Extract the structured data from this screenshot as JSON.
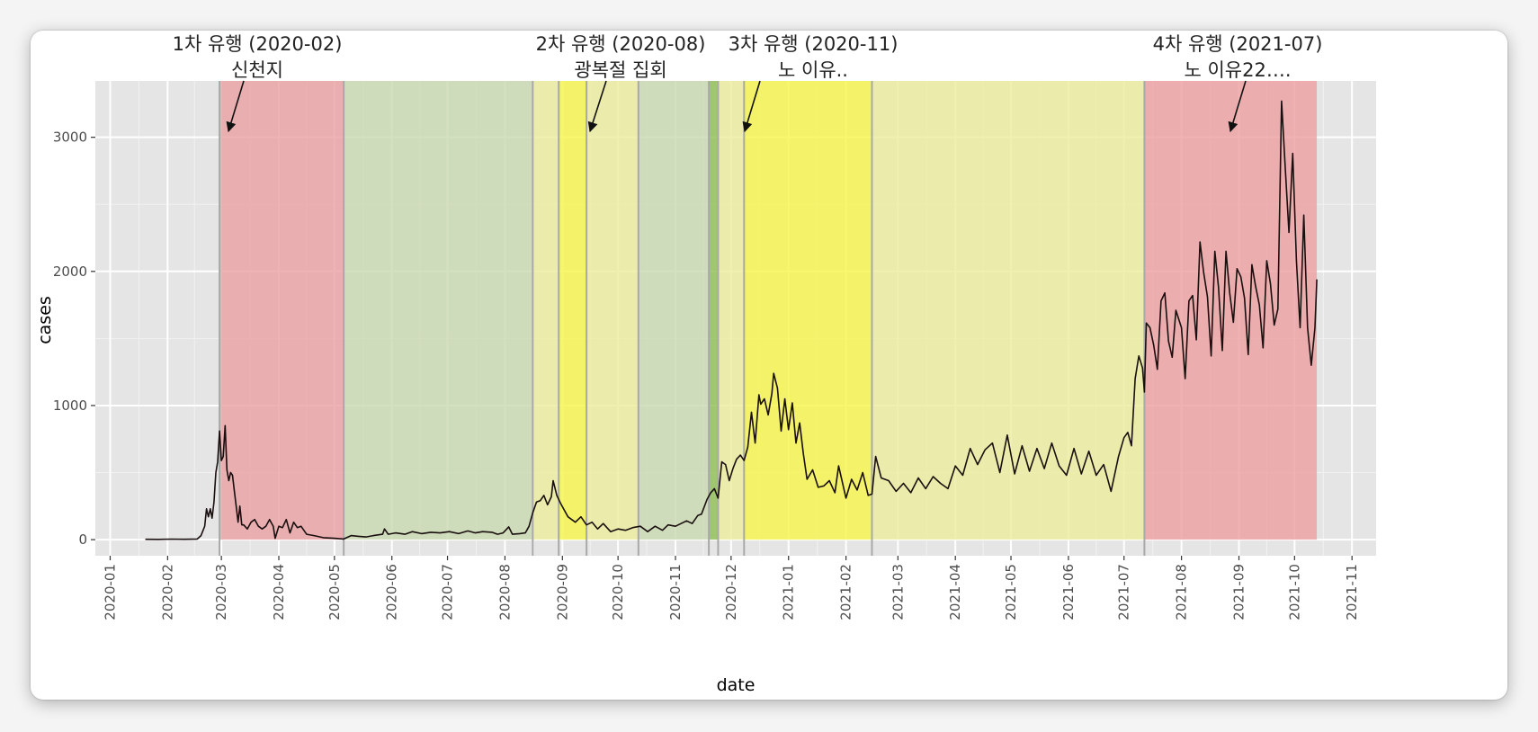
{
  "chart_data": {
    "type": "line",
    "xlabel": "date",
    "ylabel": "cases",
    "xlim": [
      "2020-01-01",
      "2021-11-01"
    ],
    "ylim": [
      0,
      3300
    ],
    "x_ticks": [
      "2020-01",
      "2020-02",
      "2020-03",
      "2020-04",
      "2020-05",
      "2020-06",
      "2020-07",
      "2020-08",
      "2020-09",
      "2020-10",
      "2020-11",
      "2020-12",
      "2021-01",
      "2021-02",
      "2021-03",
      "2021-04",
      "2021-05",
      "2021-06",
      "2021-07",
      "2021-08",
      "2021-09",
      "2021-10",
      "2021-11"
    ],
    "y_ticks": [
      0,
      1000,
      2000,
      3000
    ],
    "grid": true,
    "shaded_periods": [
      {
        "start": "2020-02-29",
        "end": "2020-05-06",
        "color": "#e8a0a3"
      },
      {
        "start": "2020-05-06",
        "end": "2020-08-16",
        "color": "#c9d9b0"
      },
      {
        "start": "2020-08-16",
        "end": "2020-08-30",
        "color": "#ecec9c"
      },
      {
        "start": "2020-08-30",
        "end": "2020-09-14",
        "color": "#f6f54a"
      },
      {
        "start": "2020-09-14",
        "end": "2020-10-12",
        "color": "#ecec9c"
      },
      {
        "start": "2020-10-12",
        "end": "2020-11-19",
        "color": "#c9d9b0"
      },
      {
        "start": "2020-11-19",
        "end": "2020-11-24",
        "color": "#8fbf4f"
      },
      {
        "start": "2020-11-24",
        "end": "2020-12-08",
        "color": "#ecec9c"
      },
      {
        "start": "2020-12-08",
        "end": "2021-02-15",
        "color": "#f6f54a"
      },
      {
        "start": "2021-02-15",
        "end": "2021-07-12",
        "color": "#ecec9c"
      },
      {
        "start": "2021-07-12",
        "end": "2021-10-13",
        "color": "#ec9fa0"
      }
    ],
    "vlines": [
      "2020-02-29",
      "2020-05-06",
      "2020-08-16",
      "2020-08-30",
      "2020-09-14",
      "2020-10-12",
      "2020-11-19",
      "2020-11-24",
      "2020-12-08",
      "2021-02-15",
      "2021-07-12"
    ],
    "annotations": [
      {
        "text": [
          "1차 유행 (2020-02)",
          "신천지"
        ],
        "date": "2020-02-29"
      },
      {
        "text": [
          "2차 유행 (2020-08)",
          "광복절 집회"
        ],
        "date": "2020-08-16"
      },
      {
        "text": [
          "3차 유행 (2020-11)",
          "노 이유.."
        ],
        "date": "2020-11-01"
      },
      {
        "text": [
          "4차 유행 (2021-07)",
          "노 이유22…."
        ],
        "date": "2021-07-01"
      }
    ],
    "series": [
      {
        "points": [
          [
            "2020-01-20",
            3
          ],
          [
            "2020-01-27",
            2
          ],
          [
            "2020-02-03",
            4
          ],
          [
            "2020-02-10",
            3
          ],
          [
            "2020-02-17",
            5
          ],
          [
            "2020-02-19",
            30
          ],
          [
            "2020-02-21",
            100
          ],
          [
            "2020-02-22",
            230
          ],
          [
            "2020-02-23",
            170
          ],
          [
            "2020-02-24",
            230
          ],
          [
            "2020-02-25",
            160
          ],
          [
            "2020-02-26",
            280
          ],
          [
            "2020-02-27",
            500
          ],
          [
            "2020-02-28",
            580
          ],
          [
            "2020-02-29",
            810
          ],
          [
            "2020-03-01",
            590
          ],
          [
            "2020-03-02",
            620
          ],
          [
            "2020-03-03",
            850
          ],
          [
            "2020-03-04",
            520
          ],
          [
            "2020-03-05",
            440
          ],
          [
            "2020-03-06",
            500
          ],
          [
            "2020-03-07",
            480
          ],
          [
            "2020-03-08",
            360
          ],
          [
            "2020-03-09",
            250
          ],
          [
            "2020-03-10",
            130
          ],
          [
            "2020-03-11",
            250
          ],
          [
            "2020-03-12",
            110
          ],
          [
            "2020-03-13",
            110
          ],
          [
            "2020-03-15",
            80
          ],
          [
            "2020-03-17",
            130
          ],
          [
            "2020-03-19",
            150
          ],
          [
            "2020-03-21",
            100
          ],
          [
            "2020-03-23",
            80
          ],
          [
            "2020-03-25",
            100
          ],
          [
            "2020-03-27",
            150
          ],
          [
            "2020-03-29",
            100
          ],
          [
            "2020-03-30",
            10
          ],
          [
            "2020-04-01",
            100
          ],
          [
            "2020-04-03",
            90
          ],
          [
            "2020-04-05",
            150
          ],
          [
            "2020-04-07",
            50
          ],
          [
            "2020-04-09",
            130
          ],
          [
            "2020-04-11",
            90
          ],
          [
            "2020-04-13",
            100
          ],
          [
            "2020-04-16",
            40
          ],
          [
            "2020-04-20",
            30
          ],
          [
            "2020-04-25",
            15
          ],
          [
            "2020-05-01",
            10
          ],
          [
            "2020-05-06",
            5
          ],
          [
            "2020-05-10",
            30
          ],
          [
            "2020-05-14",
            25
          ],
          [
            "2020-05-18",
            20
          ],
          [
            "2020-05-22",
            30
          ],
          [
            "2020-05-27",
            40
          ],
          [
            "2020-05-28",
            80
          ],
          [
            "2020-05-30",
            40
          ],
          [
            "2020-06-03",
            50
          ],
          [
            "2020-06-08",
            40
          ],
          [
            "2020-06-12",
            60
          ],
          [
            "2020-06-17",
            45
          ],
          [
            "2020-06-22",
            55
          ],
          [
            "2020-06-27",
            50
          ],
          [
            "2020-07-02",
            60
          ],
          [
            "2020-07-07",
            45
          ],
          [
            "2020-07-12",
            65
          ],
          [
            "2020-07-16",
            50
          ],
          [
            "2020-07-20",
            60
          ],
          [
            "2020-07-25",
            55
          ],
          [
            "2020-07-28",
            40
          ],
          [
            "2020-07-31",
            50
          ],
          [
            "2020-08-03",
            95
          ],
          [
            "2020-08-05",
            40
          ],
          [
            "2020-08-09",
            45
          ],
          [
            "2020-08-12",
            50
          ],
          [
            "2020-08-14",
            100
          ],
          [
            "2020-08-16",
            200
          ],
          [
            "2020-08-18",
            280
          ],
          [
            "2020-08-20",
            290
          ],
          [
            "2020-08-22",
            330
          ],
          [
            "2020-08-24",
            260
          ],
          [
            "2020-08-26",
            320
          ],
          [
            "2020-08-27",
            440
          ],
          [
            "2020-08-29",
            330
          ],
          [
            "2020-08-31",
            270
          ],
          [
            "2020-09-02",
            220
          ],
          [
            "2020-09-04",
            170
          ],
          [
            "2020-09-06",
            150
          ],
          [
            "2020-09-08",
            130
          ],
          [
            "2020-09-11",
            170
          ],
          [
            "2020-09-14",
            110
          ],
          [
            "2020-09-17",
            130
          ],
          [
            "2020-09-20",
            80
          ],
          [
            "2020-09-23",
            120
          ],
          [
            "2020-09-27",
            60
          ],
          [
            "2020-10-01",
            80
          ],
          [
            "2020-10-05",
            70
          ],
          [
            "2020-10-09",
            90
          ],
          [
            "2020-10-13",
            100
          ],
          [
            "2020-10-17",
            60
          ],
          [
            "2020-10-21",
            100
          ],
          [
            "2020-10-25",
            70
          ],
          [
            "2020-10-28",
            110
          ],
          [
            "2020-11-01",
            100
          ],
          [
            "2020-11-04",
            120
          ],
          [
            "2020-11-07",
            140
          ],
          [
            "2020-11-10",
            120
          ],
          [
            "2020-11-13",
            180
          ],
          [
            "2020-11-15",
            190
          ],
          [
            "2020-11-18",
            300
          ],
          [
            "2020-11-20",
            350
          ],
          [
            "2020-11-22",
            380
          ],
          [
            "2020-11-24",
            310
          ],
          [
            "2020-11-26",
            580
          ],
          [
            "2020-11-28",
            560
          ],
          [
            "2020-11-30",
            440
          ],
          [
            "2020-12-02",
            530
          ],
          [
            "2020-12-04",
            600
          ],
          [
            "2020-12-06",
            630
          ],
          [
            "2020-12-08",
            590
          ],
          [
            "2020-12-10",
            690
          ],
          [
            "2020-12-12",
            950
          ],
          [
            "2020-12-14",
            720
          ],
          [
            "2020-12-16",
            1080
          ],
          [
            "2020-12-17",
            1010
          ],
          [
            "2020-12-19",
            1050
          ],
          [
            "2020-12-21",
            930
          ],
          [
            "2020-12-23",
            1090
          ],
          [
            "2020-12-24",
            1240
          ],
          [
            "2020-12-26",
            1130
          ],
          [
            "2020-12-28",
            810
          ],
          [
            "2020-12-30",
            1050
          ],
          [
            "2021-01-01",
            820
          ],
          [
            "2021-01-03",
            1020
          ],
          [
            "2021-01-05",
            720
          ],
          [
            "2021-01-07",
            870
          ],
          [
            "2021-01-09",
            640
          ],
          [
            "2021-01-11",
            450
          ],
          [
            "2021-01-14",
            520
          ],
          [
            "2021-01-17",
            390
          ],
          [
            "2021-01-20",
            400
          ],
          [
            "2021-01-23",
            440
          ],
          [
            "2021-01-26",
            350
          ],
          [
            "2021-01-28",
            550
          ],
          [
            "2021-02-01",
            310
          ],
          [
            "2021-02-04",
            450
          ],
          [
            "2021-02-07",
            370
          ],
          [
            "2021-02-10",
            500
          ],
          [
            "2021-02-13",
            330
          ],
          [
            "2021-02-15",
            340
          ],
          [
            "2021-02-17",
            620
          ],
          [
            "2021-02-20",
            460
          ],
          [
            "2021-02-24",
            440
          ],
          [
            "2021-02-28",
            360
          ],
          [
            "2021-03-04",
            420
          ],
          [
            "2021-03-08",
            350
          ],
          [
            "2021-03-12",
            460
          ],
          [
            "2021-03-16",
            380
          ],
          [
            "2021-03-20",
            470
          ],
          [
            "2021-03-24",
            420
          ],
          [
            "2021-03-28",
            380
          ],
          [
            "2021-04-01",
            550
          ],
          [
            "2021-04-05",
            480
          ],
          [
            "2021-04-09",
            680
          ],
          [
            "2021-04-13",
            560
          ],
          [
            "2021-04-17",
            670
          ],
          [
            "2021-04-21",
            720
          ],
          [
            "2021-04-25",
            500
          ],
          [
            "2021-04-29",
            780
          ],
          [
            "2021-05-03",
            490
          ],
          [
            "2021-05-07",
            700
          ],
          [
            "2021-05-11",
            510
          ],
          [
            "2021-05-15",
            680
          ],
          [
            "2021-05-19",
            530
          ],
          [
            "2021-05-23",
            720
          ],
          [
            "2021-05-27",
            550
          ],
          [
            "2021-05-31",
            480
          ],
          [
            "2021-06-04",
            680
          ],
          [
            "2021-06-08",
            490
          ],
          [
            "2021-06-12",
            660
          ],
          [
            "2021-06-16",
            480
          ],
          [
            "2021-06-20",
            560
          ],
          [
            "2021-06-24",
            360
          ],
          [
            "2021-06-28",
            620
          ],
          [
            "2021-07-01",
            760
          ],
          [
            "2021-07-03",
            800
          ],
          [
            "2021-07-05",
            700
          ],
          [
            "2021-07-07",
            1200
          ],
          [
            "2021-07-09",
            1370
          ],
          [
            "2021-07-11",
            1280
          ],
          [
            "2021-07-12",
            1100
          ],
          [
            "2021-07-13",
            1615
          ],
          [
            "2021-07-15",
            1580
          ],
          [
            "2021-07-17",
            1450
          ],
          [
            "2021-07-19",
            1270
          ],
          [
            "2021-07-21",
            1780
          ],
          [
            "2021-07-23",
            1840
          ],
          [
            "2021-07-25",
            1480
          ],
          [
            "2021-07-27",
            1360
          ],
          [
            "2021-07-29",
            1710
          ],
          [
            "2021-08-01",
            1580
          ],
          [
            "2021-08-03",
            1200
          ],
          [
            "2021-08-05",
            1780
          ],
          [
            "2021-08-07",
            1820
          ],
          [
            "2021-08-09",
            1490
          ],
          [
            "2021-08-11",
            2220
          ],
          [
            "2021-08-13",
            1990
          ],
          [
            "2021-08-15",
            1810
          ],
          [
            "2021-08-17",
            1370
          ],
          [
            "2021-08-19",
            2150
          ],
          [
            "2021-08-21",
            1880
          ],
          [
            "2021-08-23",
            1410
          ],
          [
            "2021-08-25",
            2150
          ],
          [
            "2021-08-27",
            1840
          ],
          [
            "2021-08-29",
            1620
          ],
          [
            "2021-08-31",
            2020
          ],
          [
            "2021-09-02",
            1960
          ],
          [
            "2021-09-04",
            1800
          ],
          [
            "2021-09-06",
            1380
          ],
          [
            "2021-09-08",
            2050
          ],
          [
            "2021-09-10",
            1890
          ],
          [
            "2021-09-12",
            1750
          ],
          [
            "2021-09-14",
            1430
          ],
          [
            "2021-09-16",
            2080
          ],
          [
            "2021-09-18",
            1910
          ],
          [
            "2021-09-20",
            1600
          ],
          [
            "2021-09-22",
            1720
          ],
          [
            "2021-09-24",
            3270
          ],
          [
            "2021-09-26",
            2770
          ],
          [
            "2021-09-28",
            2290
          ],
          [
            "2021-09-30",
            2880
          ],
          [
            "2021-10-02",
            2080
          ],
          [
            "2021-10-04",
            1580
          ],
          [
            "2021-10-06",
            2420
          ],
          [
            "2021-10-08",
            1580
          ],
          [
            "2021-10-10",
            1300
          ],
          [
            "2021-10-12",
            1580
          ],
          [
            "2021-10-13",
            1940
          ]
        ]
      }
    ]
  }
}
